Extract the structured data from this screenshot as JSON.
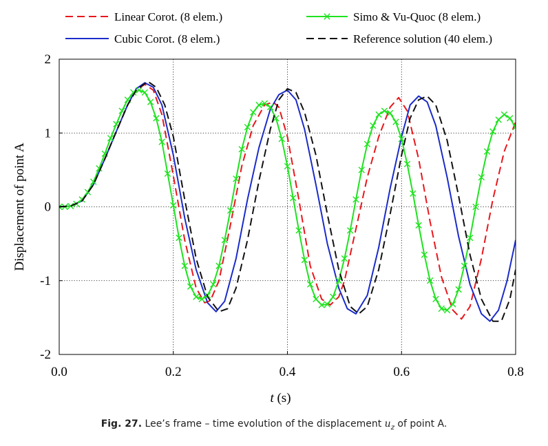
{
  "chart_data": {
    "type": "line",
    "ylabel": "Displacement of point A",
    "xlabel_var": "t",
    "xlabel_unit": " (s)",
    "xlim": [
      0,
      0.8
    ],
    "ylim": [
      -2,
      2
    ],
    "xticks": [
      0.0,
      0.2,
      0.4,
      0.6,
      0.8
    ],
    "xtick_labels": [
      "0.0",
      "0.2",
      "0.4",
      "0.6",
      "0.8"
    ],
    "yticks": [
      -2,
      -1,
      0,
      1,
      2
    ],
    "ytick_labels": [
      "-2",
      "-1",
      "0",
      "1",
      "2"
    ],
    "grid": "dotted",
    "legend_position": "top",
    "series": [
      {
        "name": "Linear Corot. (8 elem.)",
        "color": "#e8161b",
        "style": "dashed",
        "x": [
          0,
          0.02,
          0.04,
          0.06,
          0.08,
          0.1,
          0.12,
          0.135,
          0.15,
          0.165,
          0.18,
          0.2,
          0.22,
          0.24,
          0.255,
          0.265,
          0.28,
          0.3,
          0.32,
          0.34,
          0.36,
          0.375,
          0.385,
          0.4,
          0.42,
          0.44,
          0.46,
          0.475,
          0.49,
          0.5,
          0.52,
          0.54,
          0.56,
          0.58,
          0.595,
          0.61,
          0.63,
          0.65,
          0.67,
          0.69,
          0.705,
          0.72,
          0.74,
          0.76,
          0.78,
          0.8
        ],
        "y": [
          0,
          0.01,
          0.08,
          0.3,
          0.65,
          1.02,
          1.38,
          1.58,
          1.66,
          1.58,
          1.25,
          0.42,
          -0.45,
          -1.1,
          -1.3,
          -1.27,
          -1.0,
          -0.25,
          0.55,
          1.1,
          1.38,
          1.42,
          1.35,
          0.95,
          0.1,
          -0.8,
          -1.25,
          -1.33,
          -1.22,
          -1.0,
          -0.3,
          0.4,
          0.95,
          1.35,
          1.48,
          1.3,
          0.65,
          -0.2,
          -0.95,
          -1.4,
          -1.52,
          -1.35,
          -0.7,
          0.1,
          0.75,
          1.15
        ]
      },
      {
        "name": "Cubic Corot. (8 elem.)",
        "color": "#1a2bc9",
        "style": "solid",
        "x": [
          0,
          0.02,
          0.04,
          0.06,
          0.08,
          0.1,
          0.12,
          0.135,
          0.15,
          0.165,
          0.18,
          0.2,
          0.22,
          0.24,
          0.26,
          0.275,
          0.29,
          0.31,
          0.33,
          0.35,
          0.37,
          0.385,
          0.4,
          0.415,
          0.43,
          0.45,
          0.47,
          0.49,
          0.505,
          0.52,
          0.54,
          0.56,
          0.58,
          0.6,
          0.615,
          0.63,
          0.645,
          0.66,
          0.68,
          0.7,
          0.72,
          0.74,
          0.755,
          0.77,
          0.785,
          0.8
        ],
        "y": [
          0,
          0.01,
          0.08,
          0.3,
          0.65,
          1.02,
          1.38,
          1.6,
          1.68,
          1.62,
          1.38,
          0.7,
          -0.15,
          -0.85,
          -1.3,
          -1.42,
          -1.28,
          -0.7,
          0.1,
          0.8,
          1.32,
          1.52,
          1.58,
          1.45,
          1.05,
          0.3,
          -0.5,
          -1.1,
          -1.38,
          -1.45,
          -1.2,
          -0.55,
          0.25,
          0.95,
          1.38,
          1.5,
          1.42,
          1.1,
          0.4,
          -0.4,
          -1.05,
          -1.45,
          -1.55,
          -1.4,
          -1.0,
          -0.45
        ]
      },
      {
        "name": "Simo & Vu-Quoc (8 elem.)",
        "color": "#1ee21e",
        "style": "solid-markers",
        "x": [
          0,
          0.01,
          0.02,
          0.03,
          0.04,
          0.05,
          0.06,
          0.07,
          0.08,
          0.09,
          0.1,
          0.11,
          0.12,
          0.13,
          0.14,
          0.15,
          0.16,
          0.17,
          0.18,
          0.19,
          0.2,
          0.21,
          0.22,
          0.23,
          0.24,
          0.25,
          0.26,
          0.27,
          0.28,
          0.29,
          0.3,
          0.31,
          0.32,
          0.33,
          0.34,
          0.35,
          0.36,
          0.37,
          0.38,
          0.39,
          0.4,
          0.41,
          0.42,
          0.43,
          0.44,
          0.45,
          0.46,
          0.47,
          0.48,
          0.49,
          0.5,
          0.51,
          0.52,
          0.53,
          0.54,
          0.55,
          0.56,
          0.57,
          0.58,
          0.59,
          0.6,
          0.61,
          0.62,
          0.63,
          0.64,
          0.65,
          0.66,
          0.67,
          0.68,
          0.69,
          0.7,
          0.71,
          0.72,
          0.73,
          0.74,
          0.75,
          0.76,
          0.77,
          0.78,
          0.79,
          0.8
        ],
        "y": [
          0,
          0,
          0.01,
          0.04,
          0.1,
          0.2,
          0.34,
          0.52,
          0.72,
          0.93,
          1.12,
          1.3,
          1.45,
          1.55,
          1.58,
          1.55,
          1.42,
          1.2,
          0.88,
          0.45,
          0.02,
          -0.42,
          -0.8,
          -1.08,
          -1.22,
          -1.25,
          -1.2,
          -1.05,
          -0.8,
          -0.45,
          -0.05,
          0.38,
          0.78,
          1.08,
          1.28,
          1.38,
          1.4,
          1.35,
          1.2,
          0.92,
          0.55,
          0.12,
          -0.32,
          -0.72,
          -1.05,
          -1.25,
          -1.33,
          -1.32,
          -1.22,
          -1.0,
          -0.7,
          -0.32,
          0.1,
          0.5,
          0.85,
          1.1,
          1.25,
          1.3,
          1.27,
          1.15,
          0.92,
          0.58,
          0.18,
          -0.25,
          -0.65,
          -1.0,
          -1.25,
          -1.38,
          -1.4,
          -1.32,
          -1.12,
          -0.8,
          -0.42,
          0.0,
          0.4,
          0.75,
          1.02,
          1.18,
          1.25,
          1.2,
          1.08
        ]
      },
      {
        "name": "Reference solution (40 elem.)",
        "color": "#111111",
        "style": "dashed",
        "x": [
          0,
          0.02,
          0.04,
          0.06,
          0.08,
          0.1,
          0.12,
          0.135,
          0.155,
          0.17,
          0.185,
          0.2,
          0.22,
          0.24,
          0.26,
          0.28,
          0.295,
          0.31,
          0.33,
          0.35,
          0.37,
          0.385,
          0.4,
          0.415,
          0.43,
          0.45,
          0.47,
          0.49,
          0.51,
          0.525,
          0.54,
          0.56,
          0.58,
          0.6,
          0.615,
          0.63,
          0.645,
          0.66,
          0.68,
          0.7,
          0.72,
          0.74,
          0.76,
          0.775,
          0.79,
          0.8
        ],
        "y": [
          0,
          0.01,
          0.08,
          0.3,
          0.65,
          1.02,
          1.38,
          1.58,
          1.7,
          1.62,
          1.38,
          0.95,
          0.1,
          -0.7,
          -1.22,
          -1.42,
          -1.38,
          -1.1,
          -0.45,
          0.35,
          1.05,
          1.45,
          1.6,
          1.55,
          1.28,
          0.7,
          -0.1,
          -0.85,
          -1.35,
          -1.45,
          -1.35,
          -0.85,
          -0.1,
          0.7,
          1.2,
          1.45,
          1.5,
          1.38,
          0.9,
          0.15,
          -0.65,
          -1.25,
          -1.55,
          -1.55,
          -1.25,
          -0.85
        ]
      }
    ]
  },
  "caption": {
    "fig_label": "Fig. 27.",
    "text_before": " Lee’s frame – time evolution of the displacement ",
    "var": "u",
    "sub": "z",
    "text_after": " of point A."
  }
}
